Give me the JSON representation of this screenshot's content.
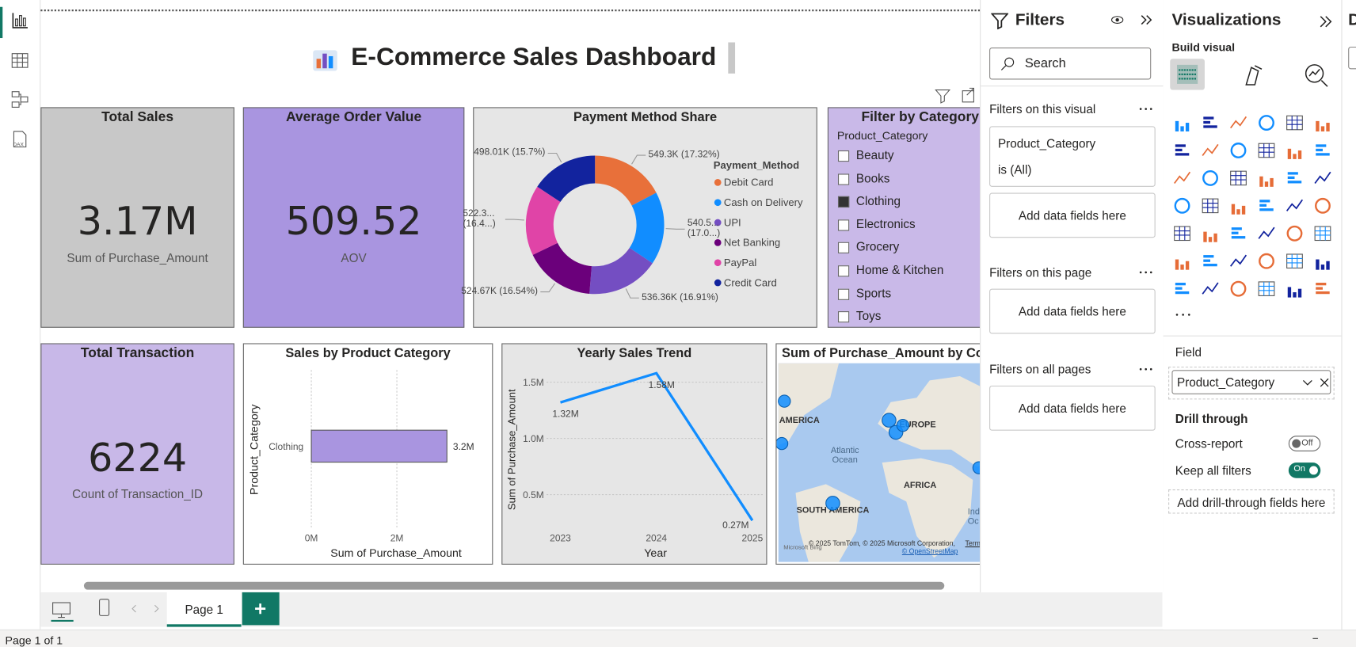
{
  "report": {
    "title": "E-Commerce Sales Dashboard"
  },
  "cards": [
    {
      "title": "Total Sales",
      "value": "3.17M",
      "label": "Sum of Purchase_Amount"
    },
    {
      "title": "Average Order Value",
      "value": "509.52",
      "label": "AOV"
    },
    {
      "title": "Total Transaction",
      "value": "6224",
      "label": "Count of Transaction_ID"
    }
  ],
  "slicer": {
    "title": "Filter by Category",
    "field": "Product_Category",
    "items": [
      {
        "label": "Beauty",
        "checked": false
      },
      {
        "label": "Books",
        "checked": false
      },
      {
        "label": "Clothing",
        "checked": true
      },
      {
        "label": "Electronics",
        "checked": false
      },
      {
        "label": "Grocery",
        "checked": false
      },
      {
        "label": "Home & Kitchen",
        "checked": false
      },
      {
        "label": "Sports",
        "checked": false
      },
      {
        "label": "Toys",
        "checked": false
      }
    ]
  },
  "chart_data": [
    {
      "type": "pie",
      "title": "Payment Method Share",
      "legend_title": "Payment_Method",
      "categories": [
        "Debit Card",
        "Cash on Delivery",
        "UPI",
        "Net Banking",
        "PayPal",
        "Credit Card"
      ],
      "values": [
        549300,
        540500,
        536360,
        524670,
        522300,
        498010
      ],
      "value_labels": [
        "549.3K (17.32%)",
        "540.5... (17.0...)",
        "536.36K (16.91%)",
        "524.67K (16.54%)",
        "522.3... (16.4...)",
        "498.01K (15.7%)"
      ],
      "colors": [
        "#e8703a",
        "#118dff",
        "#744ec2",
        "#6b007b",
        "#e044a7",
        "#12239e"
      ]
    },
    {
      "type": "bar",
      "title": "Sales by Product Category",
      "x_label": "Sum of Purchase_Amount",
      "y_label": "Product_Category",
      "categories": [
        "Clothing"
      ],
      "values": [
        3170000
      ],
      "value_labels": [
        "3.2M"
      ],
      "color": "#a995e0",
      "xlim": [
        0,
        3700000
      ],
      "xticks": [
        {
          "value": 0,
          "label": "0M"
        },
        {
          "value": 2000000,
          "label": "2M"
        }
      ],
      "grid": true
    },
    {
      "type": "line",
      "title": "Yearly Sales Trend",
      "x_label": "Year",
      "y_label": "Sum of Purchase_Amount",
      "x": [
        2023,
        2024,
        2025
      ],
      "values": [
        1320000,
        1580000,
        270000
      ],
      "value_labels": [
        "1.32M",
        "1.58M",
        "0.27M"
      ],
      "color": "#118dff",
      "xlim": [
        2023,
        2025
      ],
      "xticks": [
        2023,
        2024,
        2025
      ],
      "ylim": [
        200000,
        1650000
      ],
      "yticks": [
        {
          "value": 500000,
          "label": "0.5M"
        },
        {
          "value": 1000000,
          "label": "1.0M"
        },
        {
          "value": 1500000,
          "label": "1.5M"
        }
      ],
      "grid": true
    }
  ],
  "map": {
    "title": "Sum of Purchase_Amount by Cou",
    "labels": [
      "AMERICA",
      "EUROPE",
      "Atlantic Ocean",
      "AFRICA",
      "SOUTH AMERICA",
      "Ind",
      "Oc"
    ],
    "attribution": "© 2025 TomTom, © 2025 Microsoft Corporation,",
    "terms": "Terms",
    "osm": "© OpenStreetMap",
    "bing": "Microsoft Bing"
  },
  "filters_pane": {
    "title": "Filters",
    "search": "Search",
    "sections": [
      {
        "title": "Filters on this visual",
        "card": {
          "field": "Product_Category",
          "condition": "is (All)"
        },
        "add": "Add data fields here"
      },
      {
        "title": "Filters on this page",
        "add": "Add data fields here"
      },
      {
        "title": "Filters on all pages",
        "add": "Add data fields here"
      }
    ]
  },
  "viz_pane": {
    "title": "Visualizations",
    "build": "Build visual",
    "field_label": "Field",
    "field": "Product_Category",
    "drill_title": "Drill through",
    "cross_report": "Cross-report",
    "cross_state": "Off",
    "keep_filters": "Keep all filters",
    "keep_state": "On",
    "drill_add": "Add drill-through fields here"
  },
  "data_pane": {
    "title": "D"
  },
  "pages": {
    "tab": "Page 1",
    "status": "Page 1 of 1"
  }
}
